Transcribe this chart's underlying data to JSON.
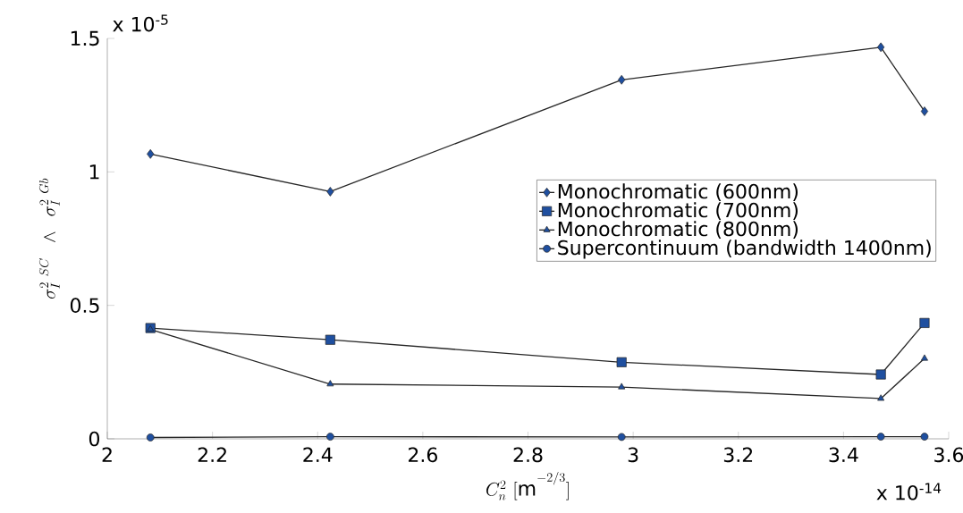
{
  "chart_data": {
    "type": "line",
    "xlabel": "C_n^2\\ [\\mathrm{m}^{-2/3}]",
    "ylabel": "\\sigma_I^{2\\;\\,SC}\\;\\;\\wedge\\;\\;\\sigma_I^{2\\;\\,Gb}",
    "x": [
      2.082,
      2.424,
      2.978,
      3.471,
      3.554
    ],
    "series": [
      {
        "name": "Monochromatic (600nm)",
        "color": "#1f4f9f",
        "marker": "diamond",
        "values": [
          1.067,
          0.926,
          1.345,
          1.467,
          1.227
        ]
      },
      {
        "name": "Monochromatic (700nm)",
        "color": "#1f4f9f",
        "marker": "square",
        "values": [
          0.415,
          0.371,
          0.287,
          0.241,
          0.434
        ]
      },
      {
        "name": "Monochromatic (800nm)",
        "color": "#1f4f9f",
        "marker": "triangle",
        "values": [
          0.41,
          0.205,
          0.194,
          0.151,
          0.301
        ]
      },
      {
        "name": "Supercontinuum (bandwidth 1400nm)",
        "color": "#1f4f9f",
        "marker": "circle",
        "values": [
          0.005,
          0.008,
          0.007,
          0.008,
          0.008
        ]
      }
    ],
    "xlim": [
      2,
      3.6
    ],
    "ylim": [
      0,
      1.5
    ],
    "xticks": [
      2,
      2.2,
      2.4,
      2.6,
      2.8,
      3,
      3.2,
      3.4,
      3.6
    ],
    "yticks": [
      0,
      0.5,
      1,
      1.5
    ],
    "annotations": [
      "x 10$^{-5}$",
      "x 10$^{-14}$"
    ],
    "legend": "right",
    "grid": false,
    "line_style": "solid"
  }
}
